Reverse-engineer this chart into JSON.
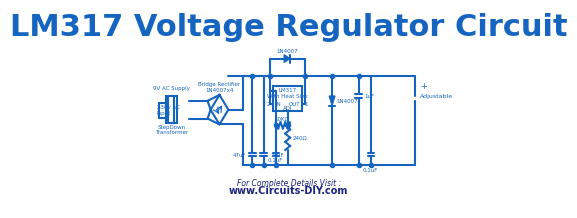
{
  "title": "LM317 Voltage Regulator Circuit",
  "title_color": "#1565C0",
  "title_fontsize": 22,
  "title_fontweight": "bold",
  "bg_color": "#ffffff",
  "circuit_color": "#1565C0",
  "circuit_lw": 1.5,
  "text_color": "#1565C0",
  "footer_text": "For Complete Details Visit :",
  "footer_url": "www.Circuits-DIY.com",
  "labels": {
    "ac_input": "230v AC\nInput",
    "transformer": "StepDown\nTransformer",
    "ac_supply": "9V AC Supply",
    "bridge": "Bridge Rectifier\n1N4007x4",
    "diode_top": "1N4007",
    "lm317": "LM317\nWith Heat Sink",
    "in_pin": "IN",
    "out_pin": "OUT",
    "adj_pin": "ADJ",
    "pin2": "2",
    "pin1": "1",
    "r1": "240Ω",
    "r2": "10KΩ",
    "c1": "47uF",
    "c2": "10uF",
    "c3": "0.1uF",
    "c4": "0.1uF",
    "c5": "1uF",
    "d_out": "1N4007",
    "adjustable": "Adjustable",
    "plus": "+"
  }
}
